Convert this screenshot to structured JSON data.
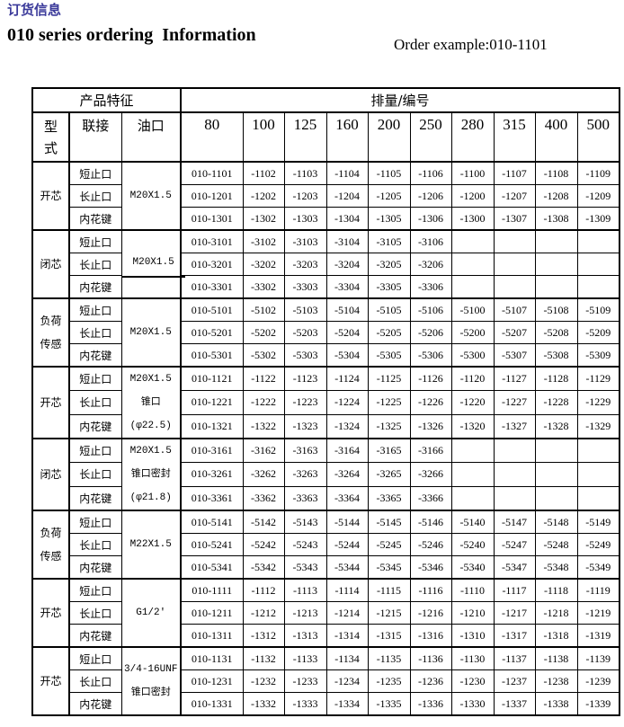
{
  "header": {
    "cn_title": "订货信息",
    "en_title": "010 series ordering  Information",
    "example": "Order example:010-1101"
  },
  "table": {
    "group_headers": {
      "features": "产品特征",
      "displacement": "排量/编号"
    },
    "columns": {
      "type": "型式",
      "connection": "联接",
      "port": "油口"
    },
    "displacements": [
      "80",
      "100",
      "125",
      "160",
      "200",
      "250",
      "280",
      "315",
      "400",
      "500"
    ],
    "groups": [
      {
        "type": "开芯",
        "port": [
          "M20X1.5"
        ],
        "port_underline": false,
        "rows": [
          {
            "conn": "短止口",
            "codes": [
              "010-1101",
              "-1102",
              "-1103",
              "-1104",
              "-1105",
              "-1106",
              "-1100",
              "-1107",
              "-1108",
              "-1109"
            ]
          },
          {
            "conn": "长止口",
            "codes": [
              "010-1201",
              "-1202",
              "-1203",
              "-1204",
              "-1205",
              "-1206",
              "-1200",
              "-1207",
              "-1208",
              "-1209"
            ]
          },
          {
            "conn": "内花键",
            "codes": [
              "010-1301",
              "-1302",
              "-1303",
              "-1304",
              "-1305",
              "-1306",
              "-1300",
              "-1307",
              "-1308",
              "-1309"
            ]
          }
        ]
      },
      {
        "type": "闭芯",
        "port": [
          "M20X1.5"
        ],
        "port_underline": true,
        "rows": [
          {
            "conn": "短止口",
            "codes": [
              "010-3101",
              "-3102",
              "-3103",
              "-3104",
              "-3105",
              "-3106",
              "",
              "",
              "",
              ""
            ]
          },
          {
            "conn": "长止口",
            "codes": [
              "010-3201",
              "-3202",
              "-3203",
              "-3204",
              "-3205",
              "-3206",
              "",
              "",
              "",
              ""
            ]
          },
          {
            "conn": "内花键",
            "codes": [
              "010-3301",
              "-3302",
              "-3303",
              "-3304",
              "-3305",
              "-3306",
              "",
              "",
              "",
              ""
            ]
          }
        ]
      },
      {
        "type": "负荷传感",
        "port": [
          "M20X1.5"
        ],
        "port_underline": false,
        "rows": [
          {
            "conn": "短止口",
            "codes": [
              "010-5101",
              "-5102",
              "-5103",
              "-5104",
              "-5105",
              "-5106",
              "-5100",
              "-5107",
              "-5108",
              "-5109"
            ]
          },
          {
            "conn": "长止口",
            "codes": [
              "010-5201",
              "-5202",
              "-5203",
              "-5204",
              "-5205",
              "-5206",
              "-5200",
              "-5207",
              "-5208",
              "-5209"
            ]
          },
          {
            "conn": "内花键",
            "codes": [
              "010-5301",
              "-5302",
              "-5303",
              "-5304",
              "-5305",
              "-5306",
              "-5300",
              "-5307",
              "-5308",
              "-5309"
            ]
          }
        ]
      },
      {
        "type": "开芯",
        "port": [
          "M20X1.5",
          "锥口",
          "(φ22.5)"
        ],
        "port_underline": false,
        "rows": [
          {
            "conn": "短止口",
            "codes": [
              "010-1121",
              "-1122",
              "-1123",
              "-1124",
              "-1125",
              "-1126",
              "-1120",
              "-1127",
              "-1128",
              "-1129"
            ]
          },
          {
            "conn": "长止口",
            "codes": [
              "010-1221",
              "-1222",
              "-1223",
              "-1224",
              "-1225",
              "-1226",
              "-1220",
              "-1227",
              "-1228",
              "-1229"
            ]
          },
          {
            "conn": "内花键",
            "codes": [
              "010-1321",
              "-1322",
              "-1323",
              "-1324",
              "-1325",
              "-1326",
              "-1320",
              "-1327",
              "-1328",
              "-1329"
            ]
          }
        ]
      },
      {
        "type": "闭芯",
        "port": [
          "M20X1.5",
          "锥口密封",
          "(φ21.8)"
        ],
        "port_underline": false,
        "rows": [
          {
            "conn": "短止口",
            "codes": [
              "010-3161",
              "-3162",
              "-3163",
              "-3164",
              "-3165",
              "-3166",
              "",
              "",
              "",
              ""
            ]
          },
          {
            "conn": "长止口",
            "codes": [
              "010-3261",
              "-3262",
              "-3263",
              "-3264",
              "-3265",
              "-3266",
              "",
              "",
              "",
              ""
            ]
          },
          {
            "conn": "内花键",
            "codes": [
              "010-3361",
              "-3362",
              "-3363",
              "-3364",
              "-3365",
              "-3366",
              "",
              "",
              "",
              ""
            ]
          }
        ]
      },
      {
        "type": "负荷传感",
        "port": [
          "M22X1.5"
        ],
        "port_underline": false,
        "rows": [
          {
            "conn": "短止口",
            "codes": [
              "010-5141",
              "-5142",
              "-5143",
              "-5144",
              "-5145",
              "-5146",
              "-5140",
              "-5147",
              "-5148",
              "-5149"
            ]
          },
          {
            "conn": "长止口",
            "codes": [
              "010-5241",
              "-5242",
              "-5243",
              "-5244",
              "-5245",
              "-5246",
              "-5240",
              "-5247",
              "-5248",
              "-5249"
            ]
          },
          {
            "conn": "内花键",
            "codes": [
              "010-5341",
              "-5342",
              "-5343",
              "-5344",
              "-5345",
              "-5346",
              "-5340",
              "-5347",
              "-5348",
              "-5349"
            ]
          }
        ]
      },
      {
        "type": "开芯",
        "port": [
          "G1/2'"
        ],
        "port_underline": false,
        "rows": [
          {
            "conn": "短止口",
            "codes": [
              "010-1111",
              "-1112",
              "-1113",
              "-1114",
              "-1115",
              "-1116",
              "-1110",
              "-1117",
              "-1118",
              "-1119"
            ]
          },
          {
            "conn": "长止口",
            "codes": [
              "010-1211",
              "-1212",
              "-1213",
              "-1214",
              "-1215",
              "-1216",
              "-1210",
              "-1217",
              "-1218",
              "-1219"
            ]
          },
          {
            "conn": "内花键",
            "codes": [
              "010-1311",
              "-1312",
              "-1313",
              "-1314",
              "-1315",
              "-1316",
              "-1310",
              "-1317",
              "-1318",
              "-1319"
            ]
          }
        ]
      },
      {
        "type": "开芯",
        "port": [
          "3/4-16UNF",
          "锥口密封"
        ],
        "port_underline": false,
        "rows": [
          {
            "conn": "短止口",
            "codes": [
              "010-1131",
              "-1132",
              "-1133",
              "-1134",
              "-1135",
              "-1136",
              "-1130",
              "-1137",
              "-1138",
              "-1139"
            ]
          },
          {
            "conn": "长止口",
            "codes": [
              "010-1231",
              "-1232",
              "-1233",
              "-1234",
              "-1235",
              "-1236",
              "-1230",
              "-1237",
              "-1238",
              "-1239"
            ]
          },
          {
            "conn": "内花键",
            "codes": [
              "010-1331",
              "-1332",
              "-1333",
              "-1334",
              "-1335",
              "-1336",
              "-1330",
              "-1337",
              "-1338",
              "-1339"
            ]
          }
        ]
      }
    ]
  }
}
